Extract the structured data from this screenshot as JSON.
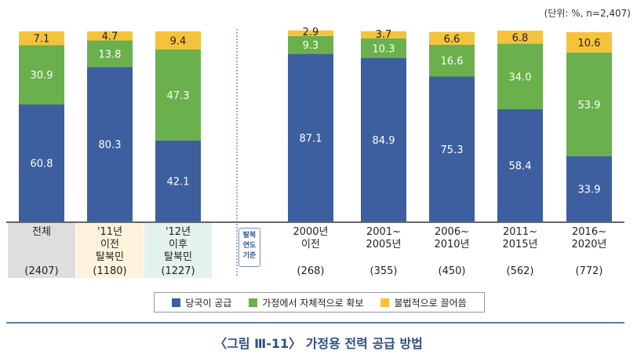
{
  "unit_note": "(단위: %, n=2,407)",
  "year_basis_label": [
    "탈북",
    "연도",
    "기준"
  ],
  "legend": [
    {
      "label": "당국이 공급",
      "color": "#3d5fa0"
    },
    {
      "label": "가정에서 자체적으로 확보",
      "color": "#6ab04c"
    },
    {
      "label": "불법적으로 끌어씀",
      "color": "#f5c23c"
    }
  ],
  "figure_title": "〈그림 Ⅲ-11〉 가정용 전력 공급 방법",
  "chart_data": {
    "type": "bar",
    "stacked": true,
    "unit": "%",
    "ylim": [
      0,
      100
    ],
    "categories": [
      {
        "lines": [
          "전체"
        ],
        "n": "(2407)",
        "bg": "#dedede"
      },
      {
        "lines": [
          "'11년",
          "이전",
          "탈북민"
        ],
        "n": "(1180)",
        "bg": "#fdf3dc"
      },
      {
        "lines": [
          "'12년",
          "이후",
          "탈북민"
        ],
        "n": "(1227)",
        "bg": "#e3f1ef"
      },
      {
        "lines": [
          "2000년",
          "이전"
        ],
        "n": "(268)",
        "bg": ""
      },
      {
        "lines": [
          "2001~",
          "2005년"
        ],
        "n": "(355)",
        "bg": ""
      },
      {
        "lines": [
          "2006~",
          "2010년"
        ],
        "n": "(450)",
        "bg": ""
      },
      {
        "lines": [
          "2011~",
          "2015년"
        ],
        "n": "(562)",
        "bg": ""
      },
      {
        "lines": [
          "2016~",
          "2020년"
        ],
        "n": "(772)",
        "bg": ""
      }
    ],
    "series": [
      {
        "name": "당국이 공급",
        "color": "#3d5fa0",
        "values": [
          60.8,
          80.3,
          42.1,
          87.1,
          84.9,
          75.3,
          58.4,
          33.9
        ]
      },
      {
        "name": "가정에서 자체적으로 확보",
        "color": "#6ab04c",
        "values": [
          30.9,
          13.8,
          47.3,
          9.3,
          10.3,
          16.6,
          34.0,
          53.9
        ]
      },
      {
        "name": "불법적으로 끌어씀",
        "color": "#f5c23c",
        "values": [
          7.1,
          4.7,
          9.4,
          2.9,
          3.7,
          6.6,
          6.8,
          10.6
        ]
      }
    ]
  }
}
